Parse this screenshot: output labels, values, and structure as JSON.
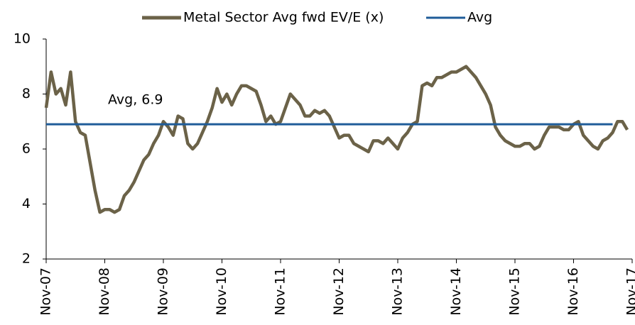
{
  "chart_data": {
    "type": "line",
    "categories": [
      "Nov-07",
      null,
      null,
      null,
      null,
      null,
      null,
      null,
      null,
      null,
      null,
      null,
      "Nov-08",
      null,
      null,
      null,
      null,
      null,
      null,
      null,
      null,
      null,
      null,
      null,
      "Nov-09",
      null,
      null,
      null,
      null,
      null,
      null,
      null,
      null,
      null,
      null,
      null,
      "Nov-10",
      null,
      null,
      null,
      null,
      null,
      null,
      null,
      null,
      null,
      null,
      null,
      "Nov-11",
      null,
      null,
      null,
      null,
      null,
      null,
      null,
      null,
      null,
      null,
      null,
      "Nov-12",
      null,
      null,
      null,
      null,
      null,
      null,
      null,
      null,
      null,
      null,
      null,
      "Nov-13",
      null,
      null,
      null,
      null,
      null,
      null,
      null,
      null,
      null,
      null,
      null,
      "Nov-14",
      null,
      null,
      null,
      null,
      null,
      null,
      null,
      null,
      null,
      null,
      null,
      "Nov-15",
      null,
      null,
      null,
      null,
      null,
      null,
      null,
      null,
      null,
      null,
      null,
      "Nov-16",
      null,
      null,
      null,
      null,
      null,
      null,
      null,
      null,
      null,
      null,
      null,
      "Nov-17"
    ],
    "series": [
      {
        "name": "Metal Sector Avg fwd EV/E (x)",
        "color": "#6b6248",
        "values": [
          7.5,
          8.8,
          8.0,
          8.2,
          7.6,
          8.8,
          7.0,
          6.6,
          6.5,
          5.5,
          4.5,
          3.7,
          3.8,
          3.8,
          3.7,
          3.8,
          4.3,
          4.5,
          4.8,
          5.2,
          5.6,
          5.8,
          6.2,
          6.5,
          7.0,
          6.8,
          6.5,
          7.2,
          7.1,
          6.2,
          6.0,
          6.2,
          6.6,
          7.0,
          7.5,
          8.2,
          7.7,
          8.0,
          7.6,
          8.0,
          8.3,
          8.3,
          8.2,
          8.1,
          7.6,
          7.0,
          7.2,
          6.9,
          7.0,
          7.5,
          8.0,
          7.8,
          7.6,
          7.2,
          7.2,
          7.4,
          7.3,
          7.4,
          7.2,
          6.8,
          6.4,
          6.5,
          6.5,
          6.2,
          6.1,
          6.0,
          5.9,
          6.3,
          6.3,
          6.2,
          6.4,
          6.2,
          6.0,
          6.4,
          6.6,
          6.9,
          7.0,
          8.3,
          8.4,
          8.3,
          8.6,
          8.6,
          8.7,
          8.8,
          8.8,
          8.9,
          9.0,
          8.8,
          8.6,
          8.3,
          8.0,
          7.6,
          6.8,
          6.5,
          6.3,
          6.2,
          6.1,
          6.1,
          6.2,
          6.2,
          6.0,
          6.1,
          6.5,
          6.8,
          6.8,
          6.8,
          6.7,
          6.7,
          6.9,
          7.0,
          6.5,
          6.3,
          6.1,
          6.0,
          6.3,
          6.4,
          6.6,
          7.0,
          7.0,
          6.7,
          null
        ]
      },
      {
        "name": "Avg",
        "color": "#1f5c99",
        "values": [
          6.9,
          6.9,
          6.9,
          6.9,
          6.9,
          6.9,
          6.9,
          6.9,
          6.9,
          6.9,
          6.9,
          6.9,
          6.9,
          6.9,
          6.9,
          6.9,
          6.9,
          6.9,
          6.9,
          6.9,
          6.9,
          6.9,
          6.9,
          6.9,
          6.9,
          6.9,
          6.9,
          6.9,
          6.9,
          6.9,
          6.9,
          6.9,
          6.9,
          6.9,
          6.9,
          6.9,
          6.9,
          6.9,
          6.9,
          6.9,
          6.9,
          6.9,
          6.9,
          6.9,
          6.9,
          6.9,
          6.9,
          6.9,
          6.9,
          6.9,
          6.9,
          6.9,
          6.9,
          6.9,
          6.9,
          6.9,
          6.9,
          6.9,
          6.9,
          6.9,
          6.9,
          6.9,
          6.9,
          6.9,
          6.9,
          6.9,
          6.9,
          6.9,
          6.9,
          6.9,
          6.9,
          6.9,
          6.9,
          6.9,
          6.9,
          6.9,
          6.9,
          6.9,
          6.9,
          6.9,
          6.9,
          6.9,
          6.9,
          6.9,
          6.9,
          6.9,
          6.9,
          6.9,
          6.9,
          6.9,
          6.9,
          6.9,
          6.9,
          6.9,
          6.9,
          6.9,
          6.9,
          6.9,
          6.9,
          6.9,
          6.9,
          6.9,
          6.9,
          6.9,
          6.9,
          6.9,
          6.9,
          6.9,
          6.9,
          6.9,
          6.9,
          6.9,
          6.9,
          6.9,
          6.9,
          6.9,
          6.9,
          null,
          null,
          null,
          null
        ]
      }
    ],
    "annotation": "Avg, 6.9",
    "ylim": [
      2,
      10
    ],
    "yticks": [
      2,
      4,
      6,
      8,
      10
    ],
    "legend": "top"
  }
}
